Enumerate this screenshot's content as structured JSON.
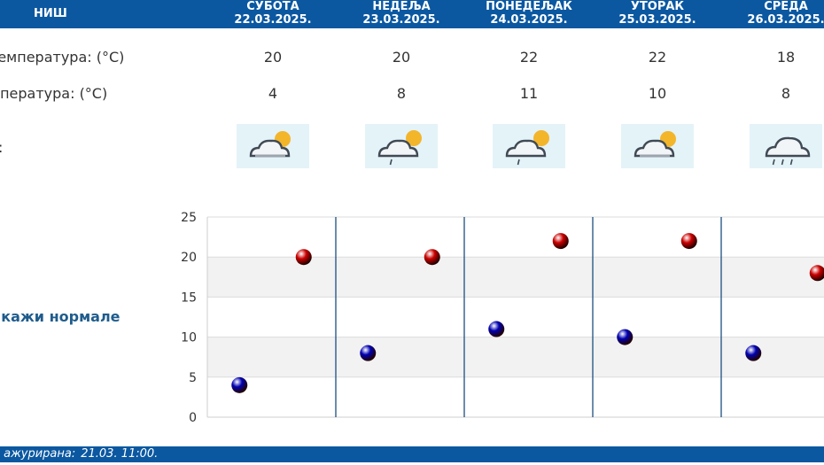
{
  "header": {
    "city": "НИШ",
    "days": [
      {
        "name": "СУБОТА",
        "date": "22.03.2025."
      },
      {
        "name": "НЕДЕЉА",
        "date": "23.03.2025."
      },
      {
        "name": "ПОНЕДЕЉАК",
        "date": "24.03.2025."
      },
      {
        "name": "УТОРАК",
        "date": "25.03.2025."
      },
      {
        "name": "СРЕДА",
        "date": "26.03.2025."
      }
    ]
  },
  "rows": {
    "max_label": "температура: (°C)",
    "min_label": "мпература: (°C)",
    "icon_label": ":",
    "max": [
      "20",
      "20",
      "22",
      "22",
      "18"
    ],
    "min": [
      "4",
      "8",
      "11",
      "10",
      "8"
    ],
    "icons": [
      "partly-cloudy-sun-icon",
      "cloud-sun-light-rain-icon",
      "cloud-sun-light-rain-icon",
      "partly-cloudy-sun-icon",
      "cloud-rain-icon"
    ]
  },
  "toggle_label": "икажи нормале",
  "footer": {
    "label": "а ажурирана:",
    "time": "21.03. 11:00."
  },
  "colors": {
    "header_bg": "#0b58a1",
    "max_point": "#cc0000",
    "min_point": "#0000b3",
    "icon_bg": "#e4f3f8"
  },
  "chart_data": {
    "type": "scatter",
    "ylim": [
      0,
      25
    ],
    "yticks": [
      "0",
      "5",
      "10",
      "15",
      "20",
      "25"
    ],
    "series": [
      {
        "name": "",
        "color": "#cc0000",
        "values": [
          20,
          20,
          22,
          22,
          18
        ]
      },
      {
        "name": "",
        "color": "#0000b3",
        "values": [
          4,
          8,
          11,
          10,
          8
        ]
      }
    ]
  }
}
